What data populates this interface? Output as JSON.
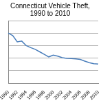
{
  "chart_data": {
    "type": "line",
    "title": "Connecticut Vehicle Theft, 1990 to 2010",
    "categories": [
      "1990",
      null,
      "1992",
      null,
      "1994",
      null,
      "1996",
      null,
      "1998",
      null,
      "2000",
      null,
      "2002",
      null,
      "2004",
      null,
      "2006",
      null,
      "2008",
      null,
      "2010"
    ],
    "values": [
      20000,
      19000,
      16500,
      16800,
      15000,
      14200,
      13500,
      12500,
      11500,
      10500,
      11200,
      10800,
      10200,
      9900,
      9800,
      9700,
      9500,
      8800,
      8200,
      7800,
      7600
    ],
    "color": "#4a7ebb",
    "ylim": [
      0,
      25000
    ],
    "yticks": [
      0,
      5000,
      10000,
      15000,
      20000,
      25000
    ],
    "grid": true,
    "tick_labels": "x"
  }
}
